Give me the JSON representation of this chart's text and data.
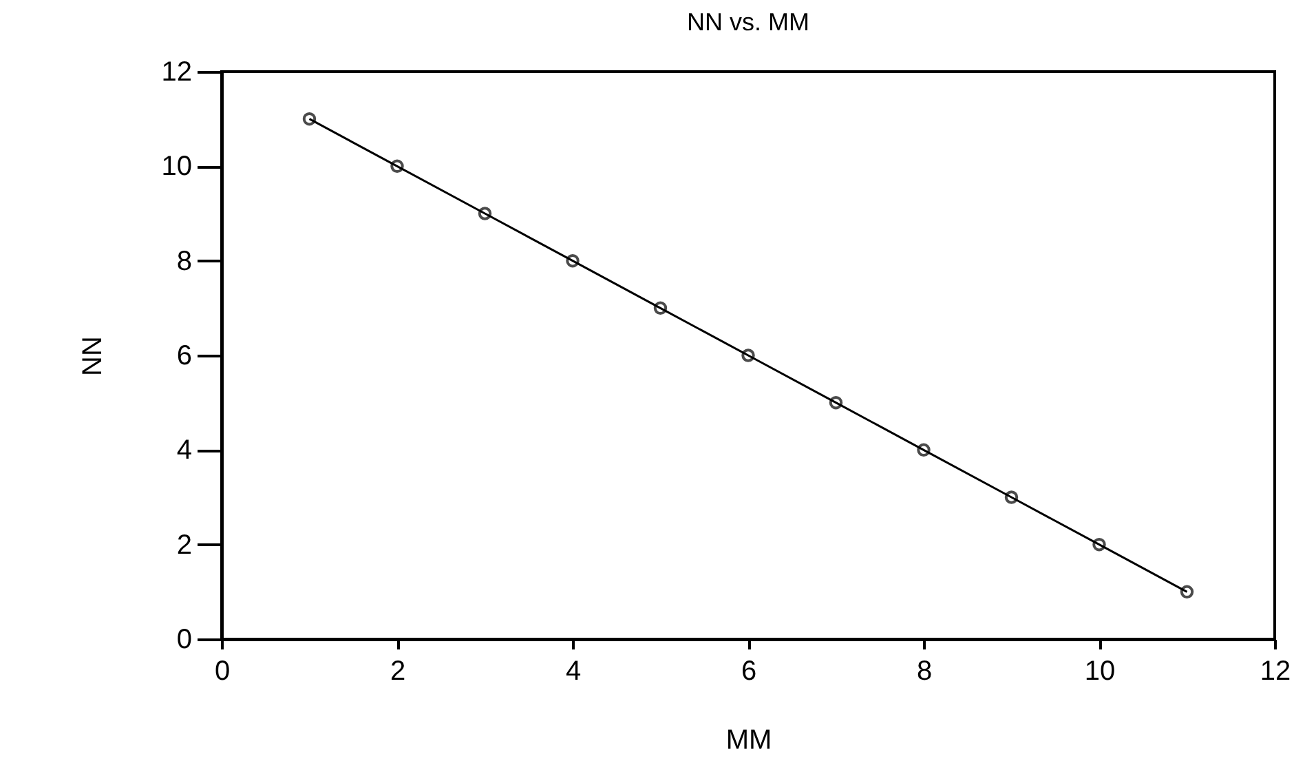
{
  "chart_data": {
    "type": "line",
    "title": "NN vs. MM",
    "xlabel": "MM",
    "ylabel": "NN",
    "x": [
      1,
      2,
      3,
      4,
      5,
      6,
      7,
      8,
      9,
      10,
      11
    ],
    "series": [
      {
        "color": "#000000",
        "values": [
          11,
          10,
          9,
          8,
          7,
          6,
          5,
          4,
          3,
          2,
          1
        ]
      }
    ],
    "xlim": [
      0,
      12
    ],
    "xticks": [
      0,
      2,
      4,
      6,
      8,
      10,
      12
    ],
    "ylim": [
      0,
      12
    ],
    "yticks": [
      0,
      2,
      4,
      6,
      8,
      10,
      12
    ],
    "marker": "circle",
    "line_style": "solid",
    "grid": false,
    "legend": false
  }
}
